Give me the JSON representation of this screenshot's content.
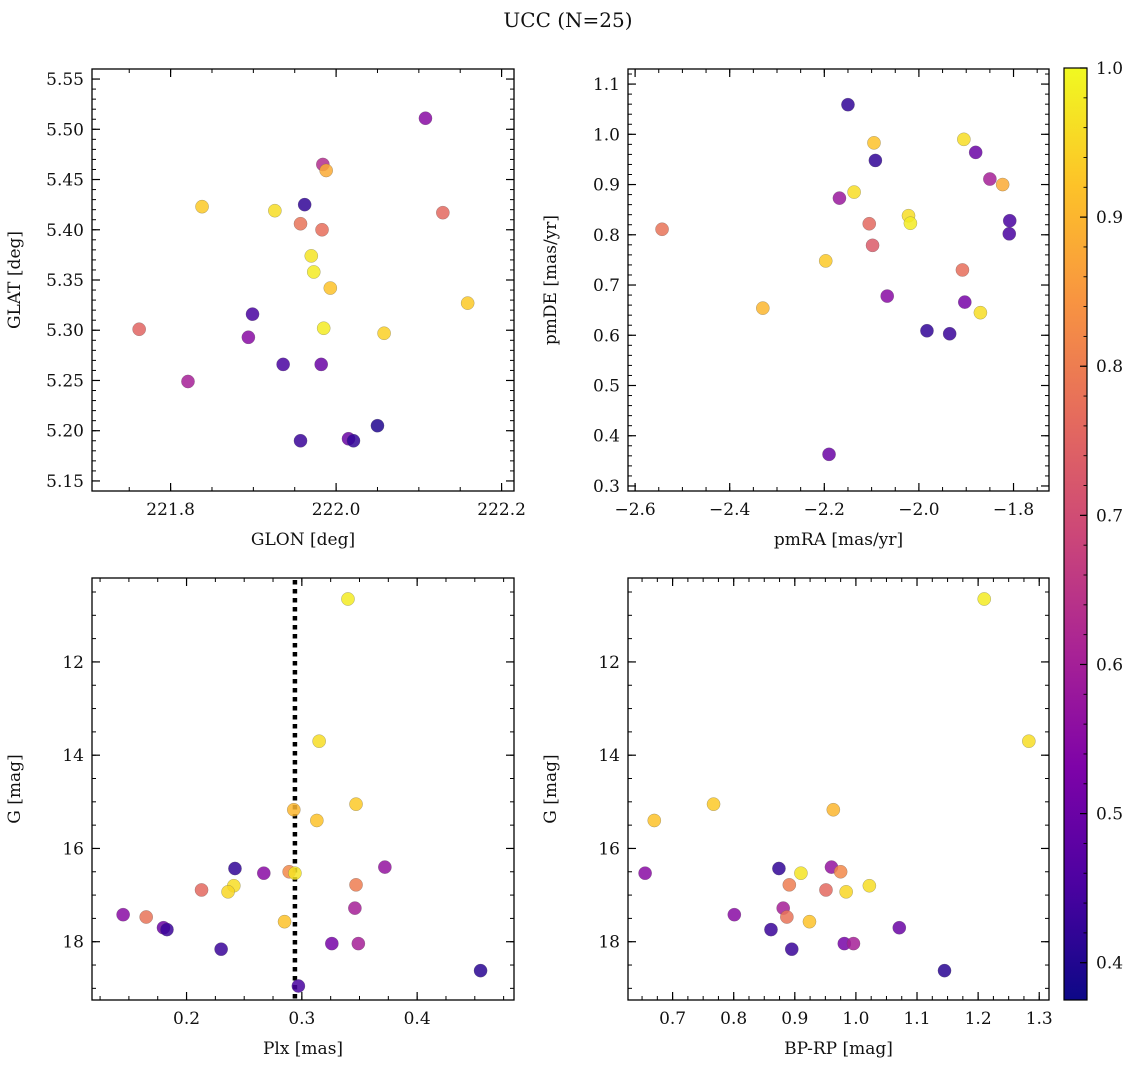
{
  "figure": {
    "title": "UCC (N=25)"
  },
  "colormap": {
    "name": "plasma",
    "range": [
      0.375,
      1.0
    ],
    "ticks": [
      0.4,
      0.5,
      0.6,
      0.7,
      0.8,
      0.9,
      1.0
    ],
    "tick_labels": [
      "0.4",
      "0.5",
      "0.6",
      "0.7",
      "0.8",
      "0.9",
      "1.0"
    ]
  },
  "chart_data": [
    {
      "type": "scatter",
      "xlabel": "GLON [deg]",
      "ylabel": "GLAT [deg]",
      "xlim": [
        221.705,
        222.215
      ],
      "ylim": [
        5.14,
        5.56
      ],
      "xticks": [
        221.8,
        222.0,
        222.2
      ],
      "xtick_labels": [
        "221.8",
        "222.0",
        "222.2"
      ],
      "yticks": [
        5.15,
        5.2,
        5.25,
        5.3,
        5.35,
        5.4,
        5.45,
        5.5,
        5.55
      ],
      "ytick_labels": [
        "5.15",
        "5.20",
        "5.25",
        "5.30",
        "5.35",
        "5.40",
        "5.45",
        "5.50",
        "5.55"
      ],
      "y_inverted": false,
      "points": [
        {
          "x": 222.108,
          "y": 5.511,
          "c": 0.55
        },
        {
          "x": 221.984,
          "y": 5.465,
          "c": 0.63
        },
        {
          "x": 221.988,
          "y": 5.459,
          "c": 0.88
        },
        {
          "x": 221.838,
          "y": 5.423,
          "c": 0.93
        },
        {
          "x": 221.962,
          "y": 5.425,
          "c": 0.42
        },
        {
          "x": 221.926,
          "y": 5.419,
          "c": 0.96
        },
        {
          "x": 222.129,
          "y": 5.417,
          "c": 0.76
        },
        {
          "x": 221.957,
          "y": 5.406,
          "c": 0.78
        },
        {
          "x": 221.983,
          "y": 5.4,
          "c": 0.77
        },
        {
          "x": 221.97,
          "y": 5.374,
          "c": 0.97
        },
        {
          "x": 221.973,
          "y": 5.358,
          "c": 0.98
        },
        {
          "x": 221.993,
          "y": 5.342,
          "c": 0.92
        },
        {
          "x": 222.159,
          "y": 5.327,
          "c": 0.93
        },
        {
          "x": 221.899,
          "y": 5.316,
          "c": 0.45
        },
        {
          "x": 221.762,
          "y": 5.301,
          "c": 0.75
        },
        {
          "x": 221.985,
          "y": 5.302,
          "c": 0.98
        },
        {
          "x": 222.058,
          "y": 5.297,
          "c": 0.94
        },
        {
          "x": 221.894,
          "y": 5.293,
          "c": 0.55
        },
        {
          "x": 221.936,
          "y": 5.266,
          "c": 0.45
        },
        {
          "x": 221.982,
          "y": 5.266,
          "c": 0.5
        },
        {
          "x": 221.821,
          "y": 5.249,
          "c": 0.6
        },
        {
          "x": 222.05,
          "y": 5.205,
          "c": 0.4
        },
        {
          "x": 222.015,
          "y": 5.192,
          "c": 0.5
        },
        {
          "x": 222.021,
          "y": 5.19,
          "c": 0.42
        },
        {
          "x": 221.957,
          "y": 5.19,
          "c": 0.43
        }
      ]
    },
    {
      "type": "scatter",
      "xlabel": "pmRA [mas/yr]",
      "ylabel": "pmDE [mas/yr]",
      "xlim": [
        -2.615,
        -1.725
      ],
      "ylim": [
        0.29,
        1.13
      ],
      "xticks": [
        -2.6,
        -2.4,
        -2.2,
        -2.0,
        -1.8
      ],
      "xtick_labels": [
        "−2.6",
        "−2.4",
        "−2.2",
        "−2.0",
        "−1.8"
      ],
      "yticks": [
        0.3,
        0.4,
        0.5,
        0.6,
        0.7,
        0.8,
        0.9,
        1.0,
        1.1
      ],
      "ytick_labels": [
        "0.3",
        "0.4",
        "0.5",
        "0.6",
        "0.7",
        "0.8",
        "0.9",
        "1.0",
        "1.1"
      ],
      "y_inverted": false,
      "points": [
        {
          "x": -2.15,
          "y": 1.059,
          "c": 0.42
        },
        {
          "x": -1.905,
          "y": 0.99,
          "c": 0.96
        },
        {
          "x": -2.095,
          "y": 0.983,
          "c": 0.92
        },
        {
          "x": -1.88,
          "y": 0.964,
          "c": 0.5
        },
        {
          "x": -2.092,
          "y": 0.948,
          "c": 0.42
        },
        {
          "x": -1.85,
          "y": 0.911,
          "c": 0.6
        },
        {
          "x": -1.823,
          "y": 0.9,
          "c": 0.88
        },
        {
          "x": -2.137,
          "y": 0.885,
          "c": 0.96
        },
        {
          "x": -2.168,
          "y": 0.873,
          "c": 0.58
        },
        {
          "x": -2.022,
          "y": 0.838,
          "c": 0.96
        },
        {
          "x": -1.808,
          "y": 0.828,
          "c": 0.45
        },
        {
          "x": -2.018,
          "y": 0.823,
          "c": 0.98
        },
        {
          "x": -2.105,
          "y": 0.822,
          "c": 0.76
        },
        {
          "x": -2.543,
          "y": 0.811,
          "c": 0.78
        },
        {
          "x": -1.809,
          "y": 0.802,
          "c": 0.45
        },
        {
          "x": -2.098,
          "y": 0.779,
          "c": 0.73
        },
        {
          "x": -2.197,
          "y": 0.748,
          "c": 0.93
        },
        {
          "x": -1.908,
          "y": 0.73,
          "c": 0.77
        },
        {
          "x": -2.067,
          "y": 0.678,
          "c": 0.55
        },
        {
          "x": -1.903,
          "y": 0.666,
          "c": 0.52
        },
        {
          "x": -2.33,
          "y": 0.654,
          "c": 0.9
        },
        {
          "x": -1.87,
          "y": 0.645,
          "c": 0.96
        },
        {
          "x": -1.983,
          "y": 0.609,
          "c": 0.42
        },
        {
          "x": -1.935,
          "y": 0.603,
          "c": 0.43
        },
        {
          "x": -2.19,
          "y": 0.363,
          "c": 0.5
        }
      ]
    },
    {
      "type": "scatter",
      "xlabel": "Plx [mas]",
      "ylabel": "G [mag]",
      "xlim": [
        0.118,
        0.484
      ],
      "ylim": [
        10.2,
        19.25
      ],
      "xticks": [
        0.2,
        0.3,
        0.4
      ],
      "xtick_labels": [
        "0.2",
        "0.3",
        "0.4"
      ],
      "yticks": [
        12,
        14,
        16,
        18
      ],
      "ytick_labels": [
        "12",
        "14",
        "16",
        "18"
      ],
      "y_inverted": true,
      "vline": {
        "x": 0.294,
        "style": "dotted"
      },
      "points": [
        {
          "x": 0.34,
          "y": 10.65,
          "c": 0.98
        },
        {
          "x": 0.315,
          "y": 13.7,
          "c": 0.96
        },
        {
          "x": 0.347,
          "y": 15.05,
          "c": 0.93
        },
        {
          "x": 0.293,
          "y": 15.17,
          "c": 0.9
        },
        {
          "x": 0.313,
          "y": 15.4,
          "c": 0.92
        },
        {
          "x": 0.372,
          "y": 16.4,
          "c": 0.57
        },
        {
          "x": 0.242,
          "y": 16.43,
          "c": 0.42
        },
        {
          "x": 0.289,
          "y": 16.5,
          "c": 0.82
        },
        {
          "x": 0.294,
          "y": 16.53,
          "c": 0.97
        },
        {
          "x": 0.267,
          "y": 16.53,
          "c": 0.55
        },
        {
          "x": 0.347,
          "y": 16.78,
          "c": 0.8
        },
        {
          "x": 0.241,
          "y": 16.8,
          "c": 0.96
        },
        {
          "x": 0.213,
          "y": 16.89,
          "c": 0.76
        },
        {
          "x": 0.236,
          "y": 16.93,
          "c": 0.95
        },
        {
          "x": 0.346,
          "y": 17.28,
          "c": 0.6
        },
        {
          "x": 0.145,
          "y": 17.42,
          "c": 0.55
        },
        {
          "x": 0.165,
          "y": 17.47,
          "c": 0.78
        },
        {
          "x": 0.285,
          "y": 17.57,
          "c": 0.92
        },
        {
          "x": 0.18,
          "y": 17.7,
          "c": 0.5
        },
        {
          "x": 0.183,
          "y": 17.74,
          "c": 0.43
        },
        {
          "x": 0.326,
          "y": 18.04,
          "c": 0.52
        },
        {
          "x": 0.349,
          "y": 18.04,
          "c": 0.6
        },
        {
          "x": 0.23,
          "y": 18.16,
          "c": 0.43
        },
        {
          "x": 0.455,
          "y": 18.62,
          "c": 0.41
        },
        {
          "x": 0.297,
          "y": 18.95,
          "c": 0.45
        }
      ]
    },
    {
      "type": "scatter",
      "xlabel": "BP-RP [mag]",
      "ylabel": "G [mag]",
      "xlim": [
        0.627,
        1.316
      ],
      "ylim": [
        10.2,
        19.25
      ],
      "xticks": [
        0.7,
        0.8,
        0.9,
        1.0,
        1.1,
        1.2,
        1.3
      ],
      "xtick_labels": [
        "0.7",
        "0.8",
        "0.9",
        "1.0",
        "1.1",
        "1.2",
        "1.3"
      ],
      "yticks": [
        12,
        14,
        16,
        18
      ],
      "ytick_labels": [
        "12",
        "14",
        "16",
        "18"
      ],
      "y_inverted": true,
      "points": [
        {
          "x": 1.21,
          "y": 10.65,
          "c": 0.98
        },
        {
          "x": 1.283,
          "y": 13.7,
          "c": 0.96
        },
        {
          "x": 0.767,
          "y": 15.05,
          "c": 0.93
        },
        {
          "x": 0.963,
          "y": 15.17,
          "c": 0.9
        },
        {
          "x": 0.67,
          "y": 15.4,
          "c": 0.92
        },
        {
          "x": 0.96,
          "y": 16.4,
          "c": 0.57
        },
        {
          "x": 0.874,
          "y": 16.43,
          "c": 0.42
        },
        {
          "x": 0.975,
          "y": 16.5,
          "c": 0.82
        },
        {
          "x": 0.91,
          "y": 16.53,
          "c": 0.97
        },
        {
          "x": 0.655,
          "y": 16.53,
          "c": 0.55
        },
        {
          "x": 0.891,
          "y": 16.78,
          "c": 0.8
        },
        {
          "x": 1.022,
          "y": 16.8,
          "c": 0.96
        },
        {
          "x": 0.951,
          "y": 16.89,
          "c": 0.76
        },
        {
          "x": 0.984,
          "y": 16.93,
          "c": 0.95
        },
        {
          "x": 0.881,
          "y": 17.28,
          "c": 0.6
        },
        {
          "x": 0.801,
          "y": 17.42,
          "c": 0.55
        },
        {
          "x": 0.887,
          "y": 17.47,
          "c": 0.78
        },
        {
          "x": 0.924,
          "y": 17.57,
          "c": 0.92
        },
        {
          "x": 1.071,
          "y": 17.7,
          "c": 0.5
        },
        {
          "x": 0.861,
          "y": 17.74,
          "c": 0.43
        },
        {
          "x": 0.981,
          "y": 18.04,
          "c": 0.52
        },
        {
          "x": 0.996,
          "y": 18.04,
          "c": 0.6
        },
        {
          "x": 0.895,
          "y": 18.16,
          "c": 0.43
        },
        {
          "x": 1.145,
          "y": 18.62,
          "c": 0.41
        }
      ]
    }
  ]
}
